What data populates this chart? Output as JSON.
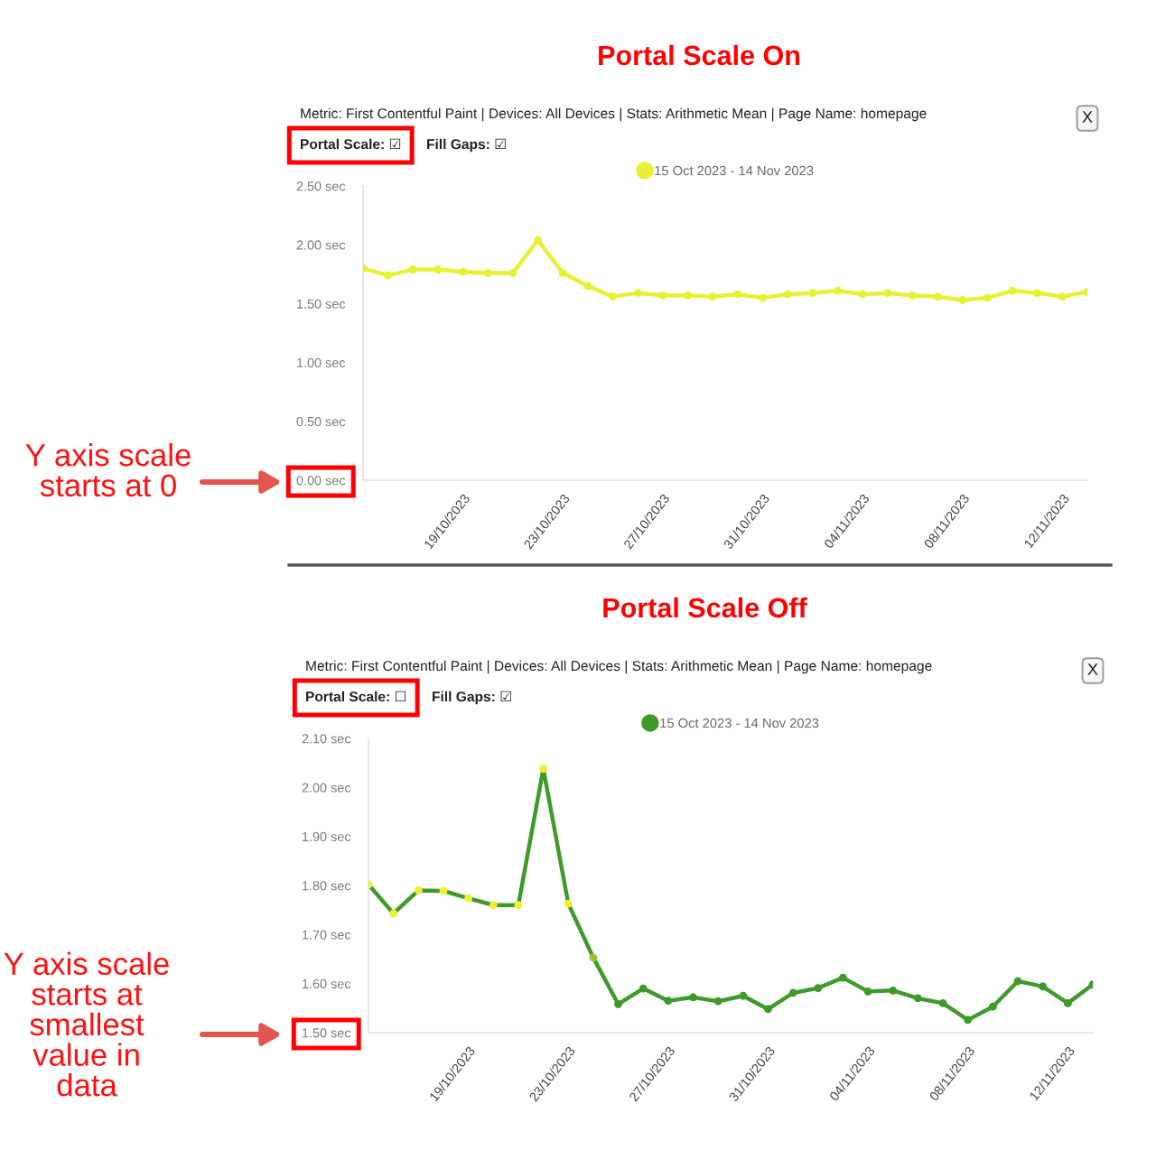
{
  "chart_data": [
    {
      "type": "line",
      "title": "Portal Scale On",
      "subtitle": "Metric: First Contentful Paint | Devices: All Devices | Stats: Arithmetic Mean | Page Name: homepage",
      "annotations": [
        "Portal Scale: ☑",
        "Fill Gaps: ☑",
        "X",
        "Y axis scale starts at 0"
      ],
      "x": [
        "2023-10-15",
        "2023-10-16",
        "2023-10-17",
        "2023-10-18",
        "2023-10-19",
        "2023-10-20",
        "2023-10-21",
        "2023-10-22",
        "2023-10-23",
        "2023-10-24",
        "2023-10-25",
        "2023-10-26",
        "2023-10-27",
        "2023-10-28",
        "2023-10-29",
        "2023-10-30",
        "2023-10-31",
        "2023-11-01",
        "2023-11-02",
        "2023-11-03",
        "2023-11-04",
        "2023-11-05",
        "2023-11-06",
        "2023-11-07",
        "2023-11-08",
        "2023-11-09",
        "2023-11-10",
        "2023-11-11",
        "2023-11-12",
        "2023-11-13"
      ],
      "series": [
        {
          "name": "15 Oct 2023 - 14 Nov 2023",
          "color": "#e8f032",
          "values": [
            1.8,
            1.74,
            1.79,
            1.79,
            1.77,
            1.76,
            1.76,
            2.04,
            1.76,
            1.65,
            1.56,
            1.59,
            1.57,
            1.57,
            1.56,
            1.58,
            1.55,
            1.58,
            1.59,
            1.61,
            1.58,
            1.59,
            1.57,
            1.56,
            1.53,
            1.55,
            1.61,
            1.59,
            1.56,
            1.6
          ]
        }
      ],
      "xlim": [
        "2023-10-15",
        "2023-11-13"
      ],
      "xticks": [
        {
          "value": "2023-10-19",
          "label": "19/10/2023"
        },
        {
          "value": "2023-10-23",
          "label": "23/10/2023"
        },
        {
          "value": "2023-10-27",
          "label": "27/10/2023"
        },
        {
          "value": "2023-10-31",
          "label": "31/10/2023"
        },
        {
          "value": "2023-11-04",
          "label": "04/11/2023"
        },
        {
          "value": "2023-11-08",
          "label": "08/11/2023"
        },
        {
          "value": "2023-11-12",
          "label": "12/11/2023"
        }
      ],
      "ylim": [
        0,
        2.5
      ],
      "yticks": [
        {
          "value": 0,
          "label": "0.00 sec"
        },
        {
          "value": 0.5,
          "label": "0.50 sec"
        },
        {
          "value": 1,
          "label": "1.00 sec"
        },
        {
          "value": 1.5,
          "label": "1.50 sec"
        },
        {
          "value": 2,
          "label": "2.00 sec"
        },
        {
          "value": 2.5,
          "label": "2.50 sec"
        }
      ],
      "legend": "top",
      "marker": "circle",
      "line_style": "solid"
    },
    {
      "type": "line",
      "title": "Portal Scale Off",
      "subtitle": "Metric: First Contentful Paint | Devices: All Devices | Stats: Arithmetic Mean | Page Name: homepage",
      "annotations": [
        "Portal Scale: ☐",
        "Fill Gaps: ☑",
        "X",
        "Y axis scale starts at smallest value in data"
      ],
      "x": [
        "2023-10-15",
        "2023-10-16",
        "2023-10-17",
        "2023-10-18",
        "2023-10-19",
        "2023-10-20",
        "2023-10-21",
        "2023-10-22",
        "2023-10-23",
        "2023-10-24",
        "2023-10-25",
        "2023-10-26",
        "2023-10-27",
        "2023-10-28",
        "2023-10-29",
        "2023-10-30",
        "2023-10-31",
        "2023-11-01",
        "2023-11-02",
        "2023-11-03",
        "2023-11-04",
        "2023-11-05",
        "2023-11-06",
        "2023-11-07",
        "2023-11-08",
        "2023-11-09",
        "2023-11-10",
        "2023-11-11",
        "2023-11-12",
        "2023-11-13"
      ],
      "series": [
        {
          "name": "15 Oct 2023 - 14 Nov 2023",
          "color": "#3f9a2c",
          "colors": [
            "#eef02c",
            "#eef02c",
            "#eef02c",
            "#eef02c",
            "#eef02c",
            "#eef02c",
            "#eef02c",
            "#eef02c",
            "#eef02c",
            "#9cc232",
            "#3f9a2c",
            "#3f9a2c",
            "#3f9a2c",
            "#3f9a2c",
            "#3f9a2c",
            "#3f9a2c",
            "#3f9a2c",
            "#3f9a2c",
            "#3f9a2c",
            "#3f9a2c",
            "#3f9a2c",
            "#3f9a2c",
            "#3f9a2c",
            "#3f9a2c",
            "#3f9a2c",
            "#3f9a2c",
            "#3f9a2c",
            "#3f9a2c",
            "#3f9a2c",
            "#3f9a2c"
          ],
          "values": [
            1.802,
            1.743,
            1.79,
            1.789,
            1.774,
            1.76,
            1.76,
            2.038,
            1.763,
            1.653,
            1.558,
            1.59,
            1.565,
            1.572,
            1.564,
            1.575,
            1.548,
            1.581,
            1.591,
            1.612,
            1.584,
            1.586,
            1.57,
            1.56,
            1.526,
            1.553,
            1.605,
            1.594,
            1.56,
            1.598
          ]
        }
      ],
      "xlim": [
        "2023-10-15",
        "2023-11-13"
      ],
      "xticks": [
        {
          "value": "2023-10-19",
          "label": "19/10/2023"
        },
        {
          "value": "2023-10-23",
          "label": "23/10/2023"
        },
        {
          "value": "2023-10-27",
          "label": "27/10/2023"
        },
        {
          "value": "2023-10-31",
          "label": "31/10/2023"
        },
        {
          "value": "2023-11-04",
          "label": "04/11/2023"
        },
        {
          "value": "2023-11-08",
          "label": "08/11/2023"
        },
        {
          "value": "2023-11-12",
          "label": "12/11/2023"
        }
      ],
      "ylim": [
        1.5,
        2.1
      ],
      "yticks": [
        {
          "value": 1.5,
          "label": "1.50 sec"
        },
        {
          "value": 1.6,
          "label": "1.60 sec"
        },
        {
          "value": 1.7,
          "label": "1.70 sec"
        },
        {
          "value": 1.8,
          "label": "1.80 sec"
        },
        {
          "value": 1.9,
          "label": "1.90 sec"
        },
        {
          "value": 2.0,
          "label": "2.00 sec"
        },
        {
          "value": 2.1,
          "label": "2.10 sec"
        }
      ],
      "legend": "top",
      "marker": "circle",
      "line_style": "solid"
    }
  ]
}
